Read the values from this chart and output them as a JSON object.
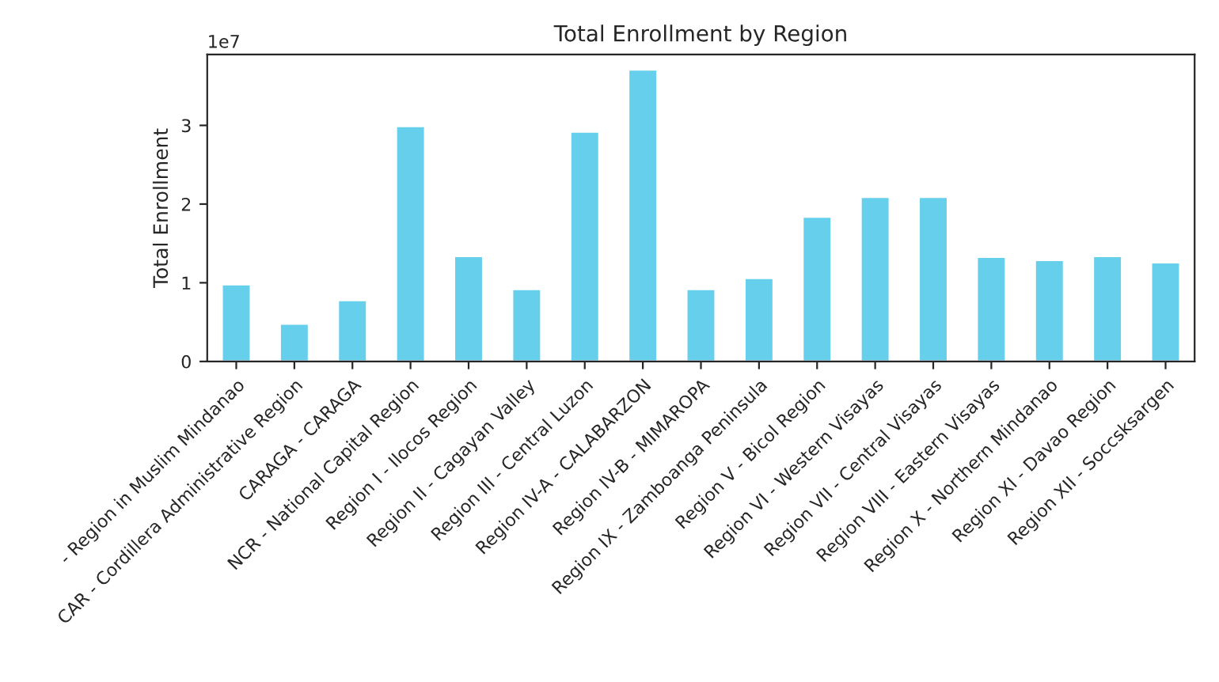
{
  "chart_data": {
    "type": "bar",
    "title": "Total Enrollment by Region",
    "ylabel": "Total Enrollment",
    "categories": [
      "- Region in Muslim Mindanao",
      "CAR - Cordillera Administrative Region",
      "CARAGA - CARAGA",
      "NCR - National Capital Region",
      "Region I - Ilocos Region",
      "Region II - Cagayan Valley",
      "Region III - Central Luzon",
      "Region IV-A - CALABARZON",
      "Region IV-B - MIMAROPA",
      "Region IX - Zamboanga Peninsula",
      "Region V - Bicol Region",
      "Region VI - Western Visayas",
      "Region VII - Central Visayas",
      "Region VIII - Eastern Visayas",
      "Region X - Northern Mindanao",
      "Region XI - Davao Region",
      "Region XII - Soccsksargen"
    ],
    "values": [
      0.98,
      0.48,
      0.78,
      2.99,
      1.34,
      0.92,
      2.92,
      3.71,
      0.92,
      1.06,
      1.84,
      2.09,
      2.09,
      1.33,
      1.29,
      1.34,
      1.26
    ],
    "color": "#66cfeb",
    "ylim": [
      0,
      3.9
    ],
    "yticks": [
      0,
      1,
      2,
      3
    ],
    "annotations": [
      "1e7"
    ],
    "grid": false
  }
}
